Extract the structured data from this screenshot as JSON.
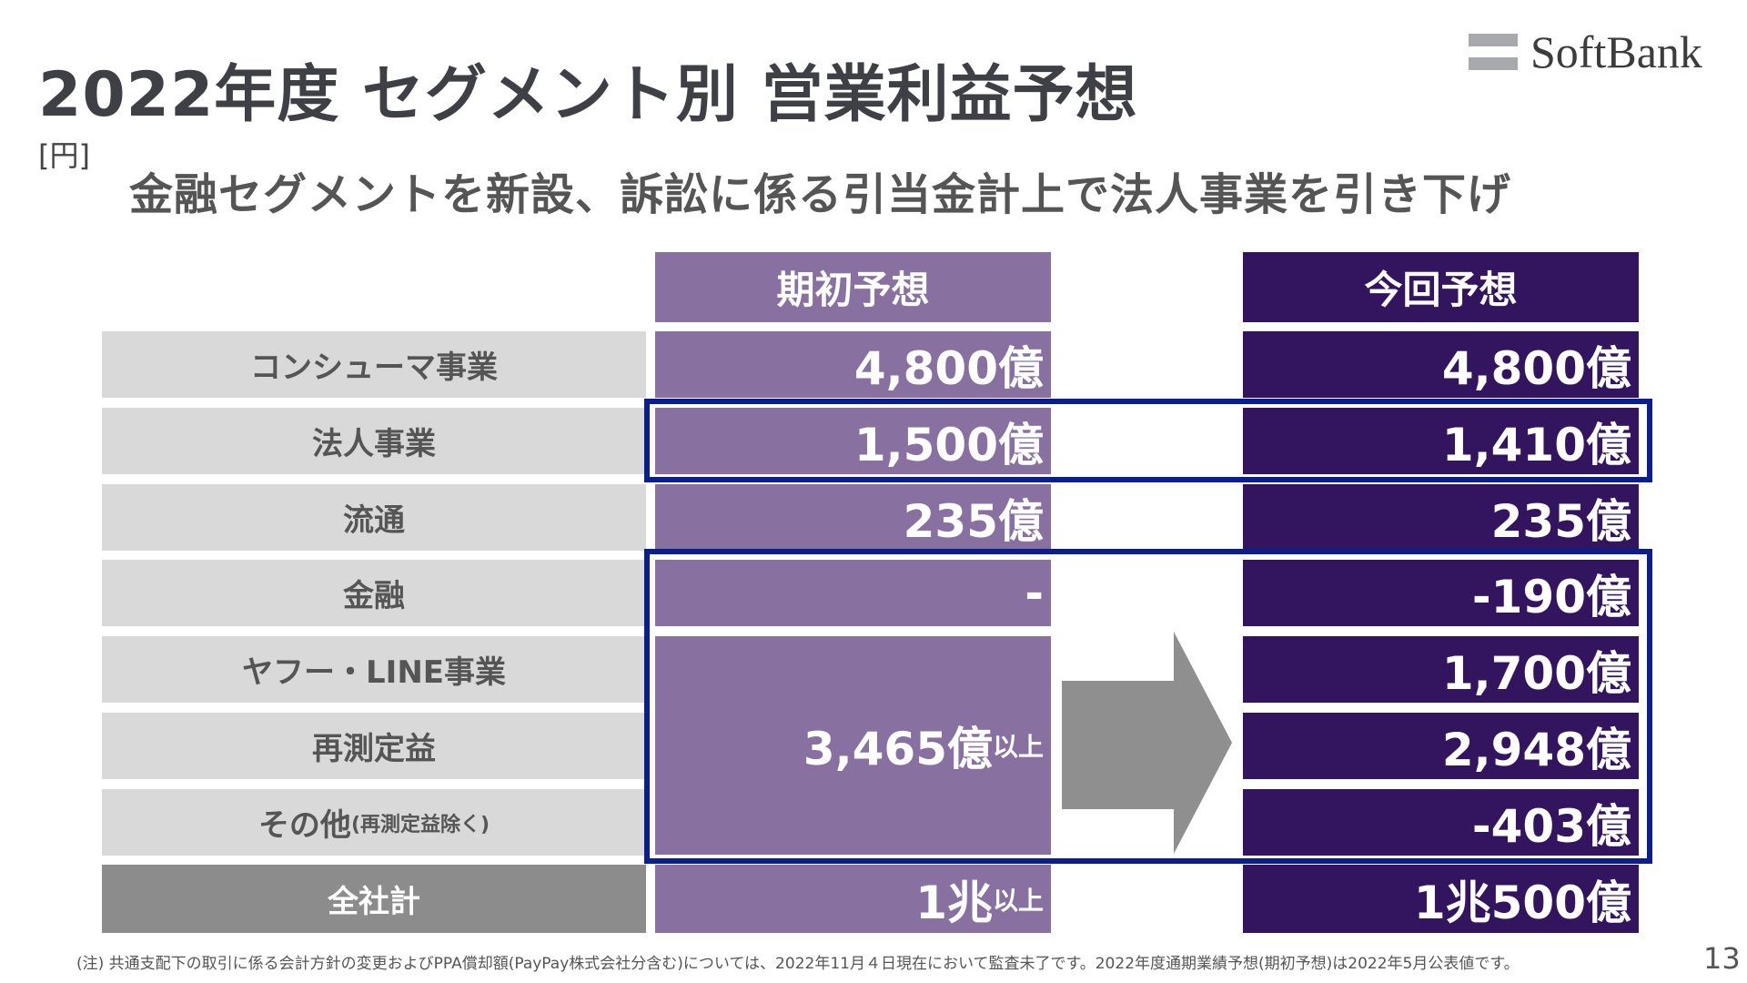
{
  "title": "2022年度 セグメント別 営業利益予想",
  "unit": "[円]",
  "subtitle": "金融セグメントを新設、訴訟に係る引当金計上で法人事業を引き下げ",
  "logo": "SoftBank",
  "columns": {
    "initial": "期初予想",
    "current": "今回予想"
  },
  "rows": [
    {
      "label": "コンシューマ事業",
      "initial": "4,800億",
      "current": "4,800億"
    },
    {
      "label": "法人事業",
      "initial": "1,500億",
      "current": "1,410億"
    },
    {
      "label": "流通",
      "initial": "235億",
      "current": "235億"
    },
    {
      "label": "金融",
      "initial": "-",
      "current": "-190億"
    },
    {
      "label": "ヤフー・LINE事業",
      "current": "1,700億"
    },
    {
      "label": "再測定益",
      "current": "2,948億"
    },
    {
      "label": "その他",
      "label_note": "(再測定益除く)",
      "current": "-403億"
    }
  ],
  "merged_initial": {
    "value": "3,465億",
    "suffix": "以上"
  },
  "total": {
    "label": "全社計",
    "initial": "1兆",
    "initial_suffix": "以上",
    "current": "1兆500億"
  },
  "footnote": "(注) 共通支配下の取引に係る会計方針の変更およびPPA償却額(PayPay株式会社分含む)については、2022年11月４日現在において監査未了です。2022年度通期業績予想(期初予想)は2022年5月公表値です。",
  "page_number": "13"
}
